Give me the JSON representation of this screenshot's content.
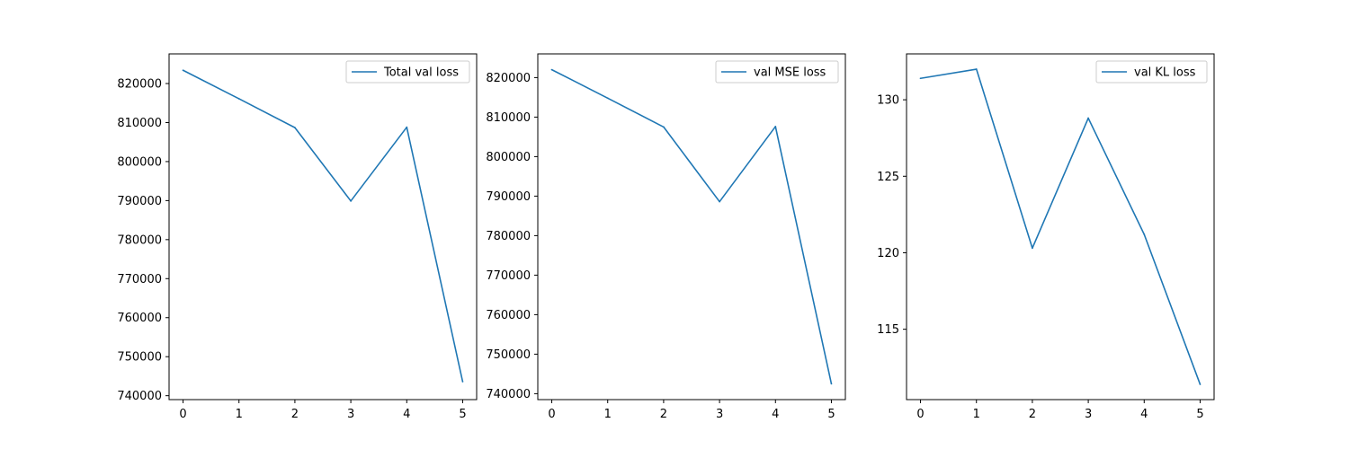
{
  "style": {
    "line_color": "#1f77b4"
  },
  "chart_data": [
    {
      "type": "line",
      "x": [
        0,
        1,
        2,
        3,
        4,
        5
      ],
      "series": [
        {
          "name": "Total val loss",
          "values": [
            823400,
            816100,
            808700,
            789900,
            808800,
            743600
          ]
        }
      ],
      "xlim": [
        -0.25,
        5.25
      ],
      "ylim": [
        739000,
        827600
      ],
      "xticks": [
        0,
        1,
        2,
        3,
        4,
        5
      ],
      "yticks": [
        740000,
        750000,
        760000,
        770000,
        780000,
        790000,
        800000,
        810000,
        820000
      ],
      "legend": "top-right",
      "grid": false
    },
    {
      "type": "line",
      "x": [
        0,
        1,
        2,
        3,
        4,
        5
      ],
      "series": [
        {
          "name": "val MSE loss",
          "values": [
            822000,
            814800,
            807500,
            788600,
            807600,
            742500
          ]
        }
      ],
      "xlim": [
        -0.25,
        5.25
      ],
      "ylim": [
        738500,
        826000
      ],
      "xticks": [
        0,
        1,
        2,
        3,
        4,
        5
      ],
      "yticks": [
        740000,
        750000,
        760000,
        770000,
        780000,
        790000,
        800000,
        810000,
        820000
      ],
      "legend": "top-right",
      "grid": false
    },
    {
      "type": "line",
      "x": [
        0,
        1,
        2,
        3,
        4,
        5
      ],
      "series": [
        {
          "name": "val KL loss",
          "values": [
            131.4,
            132.0,
            120.3,
            128.8,
            121.2,
            111.4
          ]
        }
      ],
      "xlim": [
        -0.25,
        5.25
      ],
      "ylim": [
        110.4,
        133.0
      ],
      "xticks": [
        0,
        1,
        2,
        3,
        4,
        5
      ],
      "yticks": [
        115,
        120,
        125,
        130
      ],
      "legend": "top-right",
      "grid": false
    }
  ]
}
